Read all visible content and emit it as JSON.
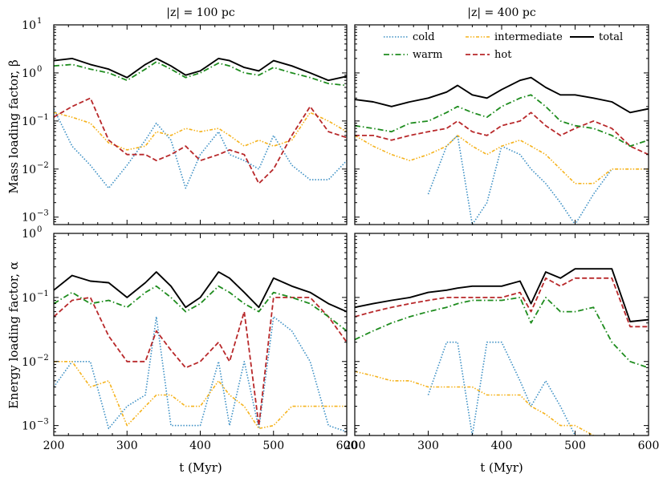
{
  "colors": {
    "cold": "#3b8fc4",
    "warm": "#1e8c1e",
    "intermediate": "#f5b21b",
    "hot": "#b8282a",
    "total": "#000000"
  },
  "chart_data": [
    {
      "type": "line",
      "panel": "top-left",
      "title": "|z| = 100 pc",
      "xlabel": "",
      "ylabel": "Mass loading factor, β",
      "xlim": [
        200,
        600
      ],
      "ylim": [
        0.0007,
        10
      ],
      "yscale": "log",
      "x": [
        200,
        225,
        250,
        275,
        300,
        325,
        340,
        360,
        380,
        400,
        425,
        440,
        460,
        480,
        500,
        525,
        550,
        575,
        600
      ],
      "series": [
        {
          "name": "cold",
          "values": [
            0.18,
            0.03,
            0.012,
            0.004,
            0.012,
            0.04,
            0.09,
            0.04,
            0.004,
            0.02,
            0.06,
            0.02,
            0.015,
            0.01,
            0.05,
            0.012,
            0.006,
            0.006,
            0.015
          ]
        },
        {
          "name": "warm",
          "values": [
            1.4,
            1.5,
            1.2,
            1.0,
            0.7,
            1.2,
            1.7,
            1.2,
            0.8,
            1.0,
            1.6,
            1.4,
            1.0,
            0.9,
            1.3,
            1.0,
            0.8,
            0.6,
            0.55
          ]
        },
        {
          "name": "intermediate",
          "values": [
            0.15,
            0.12,
            0.09,
            0.035,
            0.025,
            0.03,
            0.06,
            0.05,
            0.07,
            0.06,
            0.07,
            0.05,
            0.03,
            0.04,
            0.03,
            0.04,
            0.15,
            0.1,
            0.06
          ]
        },
        {
          "name": "hot",
          "values": [
            0.12,
            0.2,
            0.3,
            0.04,
            0.02,
            0.02,
            0.015,
            0.02,
            0.03,
            0.015,
            0.02,
            0.025,
            0.02,
            0.005,
            0.01,
            0.05,
            0.2,
            0.06,
            0.045
          ]
        },
        {
          "name": "total",
          "values": [
            1.8,
            2.0,
            1.5,
            1.2,
            0.8,
            1.5,
            2.0,
            1.4,
            0.9,
            1.1,
            2.0,
            1.8,
            1.3,
            1.1,
            1.8,
            1.4,
            1.0,
            0.7,
            0.85
          ]
        }
      ]
    },
    {
      "type": "line",
      "panel": "top-right",
      "title": "|z| = 400 pc",
      "xlabel": "",
      "ylabel": "",
      "xlim": [
        200,
        600
      ],
      "ylim": [
        0.0007,
        10
      ],
      "yscale": "log",
      "x": [
        200,
        225,
        250,
        275,
        300,
        325,
        340,
        360,
        380,
        400,
        425,
        440,
        460,
        480,
        500,
        525,
        550,
        575,
        600
      ],
      "series": [
        {
          "name": "cold",
          "values": [
            null,
            null,
            null,
            null,
            0.003,
            0.03,
            0.05,
            0.0007,
            0.002,
            0.03,
            0.02,
            0.01,
            0.005,
            0.002,
            0.0007,
            0.003,
            0.01,
            null,
            null
          ]
        },
        {
          "name": "warm",
          "values": [
            0.08,
            0.07,
            0.06,
            0.09,
            0.1,
            0.15,
            0.2,
            0.15,
            0.12,
            0.2,
            0.3,
            0.35,
            0.2,
            0.1,
            0.08,
            0.07,
            0.05,
            0.03,
            0.04
          ]
        },
        {
          "name": "intermediate",
          "values": [
            0.05,
            0.03,
            0.02,
            0.015,
            0.02,
            0.03,
            0.05,
            0.03,
            0.02,
            0.03,
            0.04,
            0.03,
            0.02,
            0.01,
            0.005,
            0.005,
            0.01,
            0.01,
            0.01
          ]
        },
        {
          "name": "hot",
          "values": [
            0.05,
            0.05,
            0.04,
            0.05,
            0.06,
            0.07,
            0.1,
            0.06,
            0.05,
            0.08,
            0.1,
            0.15,
            0.08,
            0.05,
            0.07,
            0.1,
            0.07,
            0.03,
            0.02
          ]
        },
        {
          "name": "total",
          "values": [
            0.28,
            0.25,
            0.2,
            0.25,
            0.3,
            0.4,
            0.55,
            0.35,
            0.3,
            0.45,
            0.7,
            0.8,
            0.5,
            0.35,
            0.35,
            0.3,
            0.25,
            0.15,
            0.18
          ]
        }
      ]
    },
    {
      "type": "line",
      "panel": "bottom-left",
      "title": "",
      "xlabel": "t (Myr)",
      "ylabel": "Energy loading factor, α",
      "xlim": [
        200,
        600
      ],
      "ylim": [
        0.0007,
        1
      ],
      "yscale": "log",
      "x": [
        200,
        225,
        250,
        275,
        300,
        325,
        340,
        360,
        380,
        400,
        425,
        440,
        460,
        480,
        500,
        525,
        550,
        575,
        600
      ],
      "series": [
        {
          "name": "cold",
          "values": [
            0.004,
            0.01,
            0.01,
            0.0009,
            0.002,
            0.003,
            0.05,
            0.001,
            0.001,
            0.001,
            0.01,
            0.001,
            0.01,
            0.0009,
            0.05,
            0.03,
            0.01,
            0.001,
            0.0008
          ]
        },
        {
          "name": "warm",
          "values": [
            0.08,
            0.12,
            0.08,
            0.09,
            0.07,
            0.12,
            0.15,
            0.1,
            0.06,
            0.08,
            0.15,
            0.12,
            0.08,
            0.06,
            0.12,
            0.1,
            0.08,
            0.05,
            0.03
          ]
        },
        {
          "name": "intermediate",
          "values": [
            0.01,
            0.01,
            0.004,
            0.005,
            0.001,
            0.002,
            0.003,
            0.003,
            0.002,
            0.002,
            0.005,
            0.003,
            0.002,
            0.0009,
            0.001,
            0.002,
            0.002,
            0.002,
            0.002
          ]
        },
        {
          "name": "hot",
          "values": [
            0.05,
            0.09,
            0.1,
            0.025,
            0.01,
            0.01,
            0.03,
            0.015,
            0.008,
            0.01,
            0.02,
            0.01,
            0.06,
            0.001,
            0.1,
            0.1,
            0.1,
            0.05,
            0.02
          ]
        },
        {
          "name": "total",
          "values": [
            0.13,
            0.22,
            0.18,
            0.17,
            0.1,
            0.17,
            0.25,
            0.15,
            0.07,
            0.1,
            0.25,
            0.2,
            0.12,
            0.07,
            0.2,
            0.15,
            0.12,
            0.08,
            0.06
          ]
        }
      ]
    },
    {
      "type": "line",
      "panel": "bottom-right",
      "title": "",
      "xlabel": "t (Myr)",
      "ylabel": "",
      "xlim": [
        200,
        600
      ],
      "ylim": [
        0.0007,
        1
      ],
      "yscale": "log",
      "x": [
        200,
        225,
        250,
        275,
        300,
        325,
        340,
        360,
        380,
        400,
        425,
        440,
        460,
        480,
        500,
        525,
        550,
        575,
        600
      ],
      "series": [
        {
          "name": "cold",
          "values": [
            null,
            null,
            null,
            null,
            0.003,
            0.02,
            0.02,
            0.0007,
            0.02,
            0.02,
            0.005,
            0.002,
            0.005,
            0.002,
            0.0007,
            null,
            null,
            null,
            null
          ]
        },
        {
          "name": "warm",
          "values": [
            0.022,
            0.03,
            0.04,
            0.05,
            0.06,
            0.07,
            0.08,
            0.09,
            0.09,
            0.09,
            0.1,
            0.04,
            0.1,
            0.06,
            0.06,
            0.07,
            0.02,
            0.01,
            0.008
          ]
        },
        {
          "name": "intermediate",
          "values": [
            0.007,
            0.006,
            0.005,
            0.005,
            0.004,
            0.004,
            0.004,
            0.004,
            0.003,
            0.003,
            0.003,
            0.002,
            0.0015,
            0.001,
            0.001,
            0.0007,
            null,
            null,
            null
          ]
        },
        {
          "name": "hot",
          "values": [
            0.05,
            0.06,
            0.07,
            0.08,
            0.09,
            0.1,
            0.1,
            0.1,
            0.1,
            0.1,
            0.12,
            0.06,
            0.2,
            0.15,
            0.2,
            0.2,
            0.2,
            0.035,
            0.035
          ]
        },
        {
          "name": "total",
          "values": [
            0.07,
            0.08,
            0.09,
            0.1,
            0.12,
            0.13,
            0.14,
            0.15,
            0.15,
            0.15,
            0.18,
            0.08,
            0.25,
            0.2,
            0.28,
            0.28,
            0.28,
            0.042,
            0.045
          ]
        }
      ]
    }
  ],
  "legend": {
    "items": [
      {
        "key": "cold",
        "label": "cold"
      },
      {
        "key": "intermediate",
        "label": "intermediate"
      },
      {
        "key": "total",
        "label": "total"
      },
      {
        "key": "warm",
        "label": "warm"
      },
      {
        "key": "hot",
        "label": "hot"
      }
    ]
  },
  "axis_ticks": {
    "x": [
      "200",
      "300",
      "400",
      "500",
      "600"
    ],
    "top_y": [
      {
        "base": "10",
        "exp": "1"
      },
      {
        "base": "10",
        "exp": "0"
      },
      {
        "base": "10",
        "exp": "-1"
      },
      {
        "base": "10",
        "exp": "-2"
      },
      {
        "base": "10",
        "exp": "-3"
      }
    ],
    "bottom_y": [
      {
        "base": "10",
        "exp": "0"
      },
      {
        "base": "10",
        "exp": "-1"
      },
      {
        "base": "10",
        "exp": "-2"
      },
      {
        "base": "10",
        "exp": "-3"
      }
    ]
  }
}
